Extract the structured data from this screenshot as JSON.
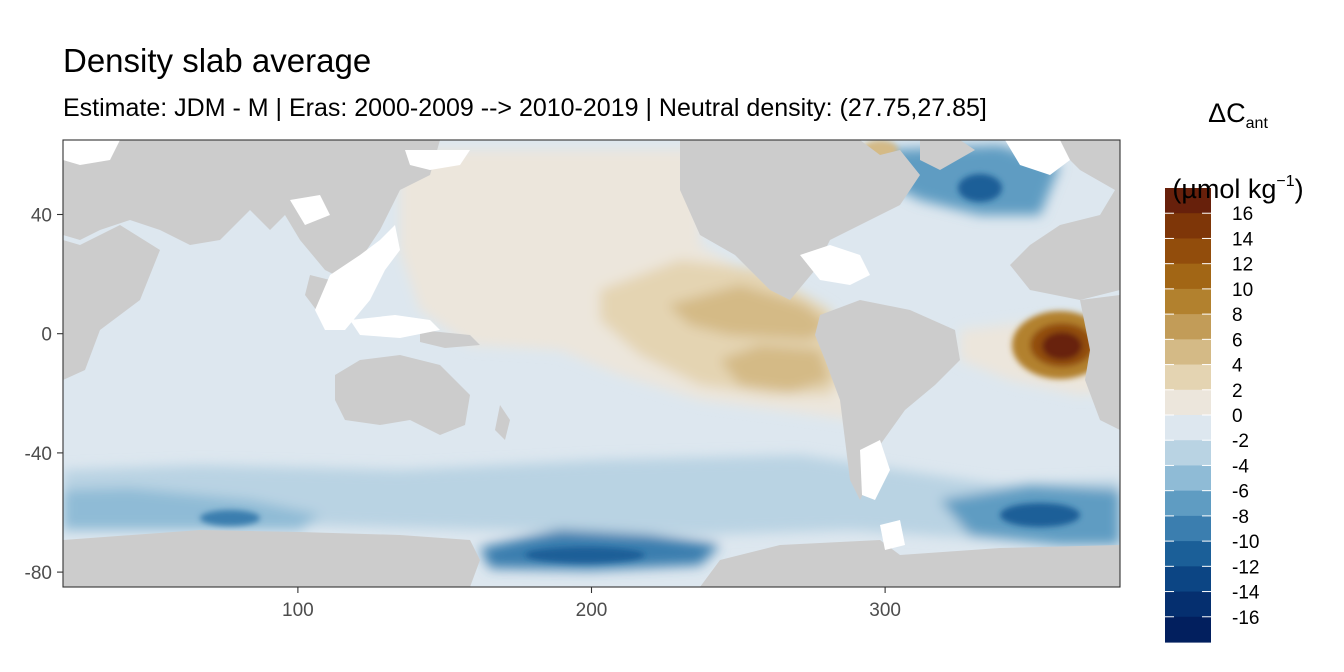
{
  "chart_data": {
    "type": "heatmap",
    "title": "Density slab average",
    "subtitle": "Estimate: JDM - M | Eras: 2000-2009 --> 2010-2019 | Neutral density: (27.75,27.85]",
    "x_ticks": [
      100,
      200,
      300
    ],
    "y_ticks": [
      40,
      0,
      -40,
      -80
    ],
    "xlim": [
      20,
      380
    ],
    "ylim": [
      -85,
      65
    ],
    "grid": false,
    "legend": {
      "position": "right",
      "title_main": "ΔC",
      "title_sub": "ant",
      "title_unit_open": "(µmol kg",
      "title_unit_sup": "−1",
      "title_unit_close": ")",
      "breaks": [
        16,
        14,
        12,
        10,
        8,
        6,
        4,
        2,
        0,
        -2,
        -4,
        -6,
        -8,
        -10,
        -12,
        -14,
        -16
      ],
      "bin_colors": [
        "#67200b",
        "#7e3608",
        "#924d0c",
        "#a26615",
        "#b2812e",
        "#c29c58",
        "#d4ba86",
        "#e4d4b2",
        "#ece6dc",
        "#dde7ef",
        "#b9d3e3",
        "#8fbbd6",
        "#5f9cc2",
        "#3b7eaf",
        "#1b5f98",
        "#0c4584",
        "#052f6f",
        "#021f5e"
      ]
    },
    "land_color": "#cccccc",
    "regions": [
      {
        "name": "background",
        "value": -1,
        "lon": [
          20,
          380
        ],
        "lat": [
          -85,
          65
        ]
      },
      {
        "name": "north-pacific",
        "value": 1,
        "lon": [
          140,
          245
        ],
        "lat": [
          8,
          60
        ]
      },
      {
        "name": "eastern-tropical-pacific",
        "value": 3,
        "lon": [
          200,
          285
        ],
        "lat": [
          -45,
          35
        ]
      },
      {
        "name": "eastern-tropical-pacific-core",
        "value": 5,
        "lon": [
          225,
          280
        ],
        "lat": [
          -20,
          25
        ]
      },
      {
        "name": "south-atlantic-hotspot",
        "value": 17,
        "lon": [
          340,
          375
        ],
        "lat": [
          -15,
          5
        ]
      },
      {
        "name": "ross-sea-shelf",
        "value": -11,
        "lon": [
          160,
          230
        ],
        "lat": [
          -80,
          -70
        ]
      },
      {
        "name": "weddell-sea",
        "value": -9,
        "lon": [
          320,
          380
        ],
        "lat": [
          -72,
          -50
        ]
      },
      {
        "name": "labrador-irminger",
        "value": -9,
        "lon": [
          315,
          345
        ],
        "lat": [
          45,
          60
        ]
      }
    ]
  }
}
